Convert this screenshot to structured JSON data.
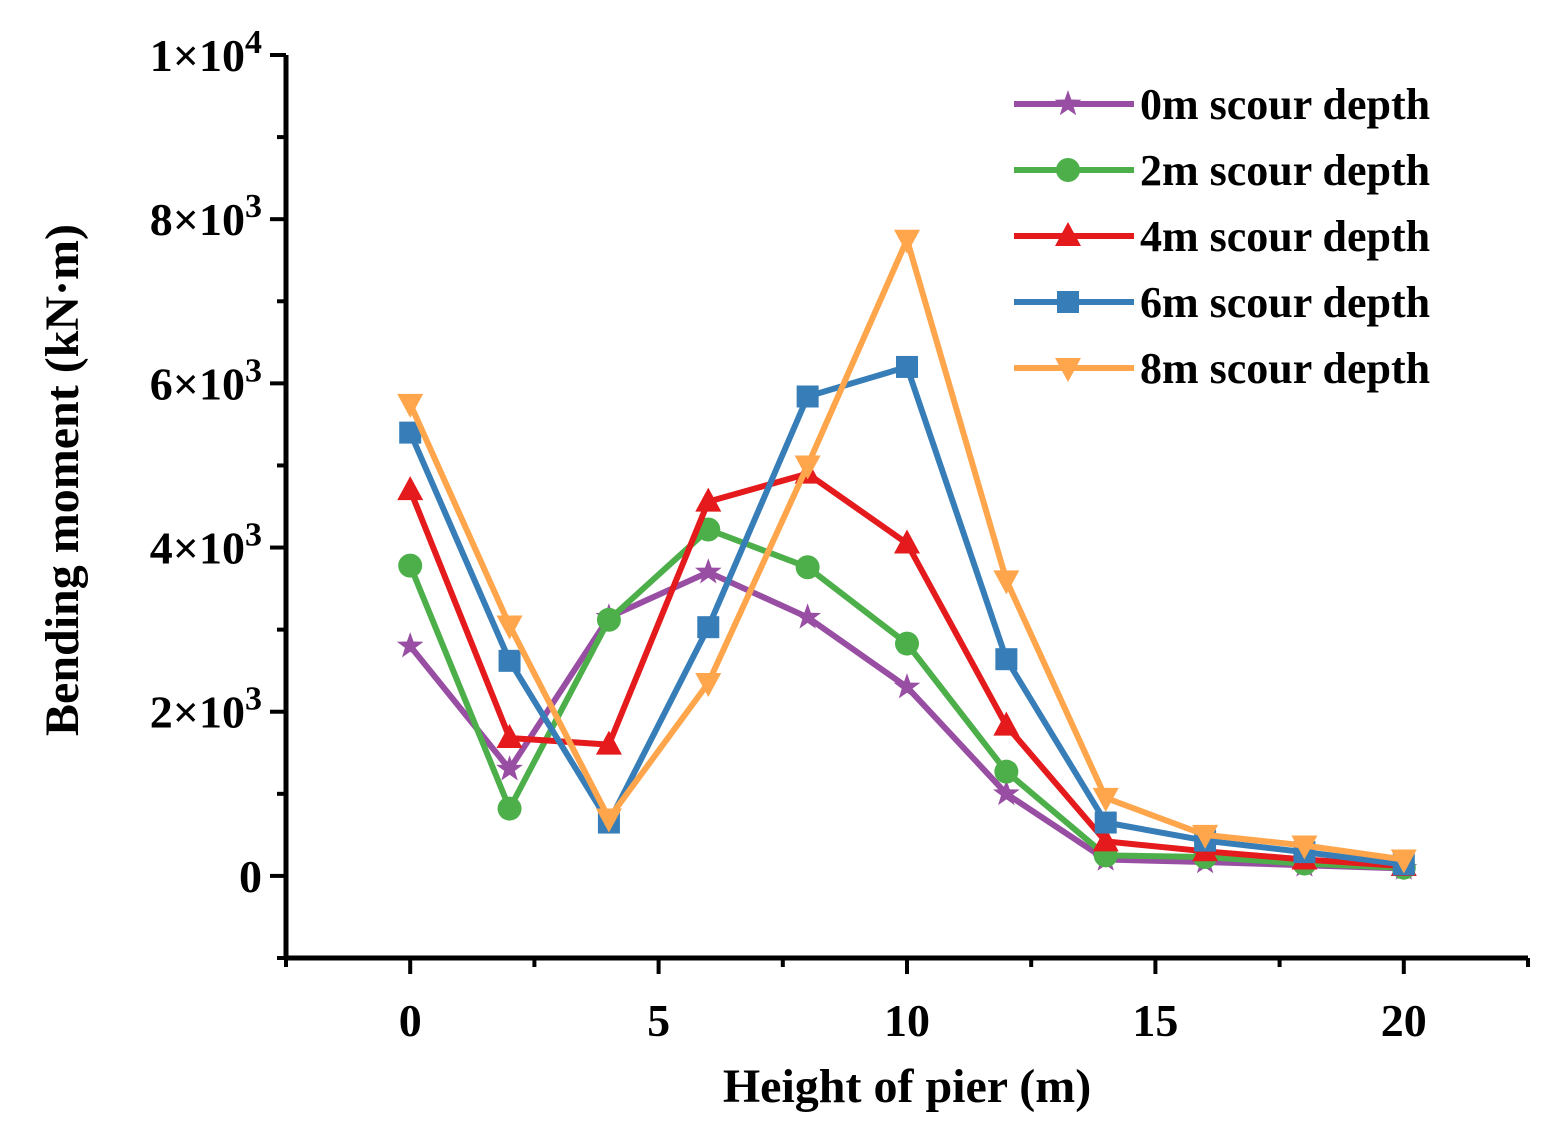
{
  "chart_data": {
    "type": "line",
    "title": "",
    "xlabel": "Height of pier (m)",
    "ylabel": "Bending moment (kN·m)",
    "xlim": [
      -2.5,
      22.5
    ],
    "ylim": [
      -1000,
      10000
    ],
    "x_ticks": [
      0,
      5,
      10,
      15,
      20
    ],
    "x_tick_labels": [
      "0",
      "5",
      "10",
      "15",
      "20"
    ],
    "y_ticks": [
      0,
      2000,
      4000,
      6000,
      8000,
      10000
    ],
    "y_tick_labels": [
      {
        "base": "0",
        "exp": ""
      },
      {
        "base": "2×10",
        "exp": "3"
      },
      {
        "base": "4×10",
        "exp": "3"
      },
      {
        "base": "6×10",
        "exp": "3"
      },
      {
        "base": "8×10",
        "exp": "3"
      },
      {
        "base": "1×10",
        "exp": "4"
      }
    ],
    "grid": false,
    "legend_position": "top-right",
    "x": [
      0,
      2,
      4,
      6,
      8,
      10,
      12,
      14,
      16,
      18,
      20
    ],
    "series": [
      {
        "name": "0m scour depth",
        "color": "#984ea3",
        "marker": "star",
        "values": [
          2800,
          1300,
          3150,
          3700,
          3150,
          2300,
          1000,
          200,
          170,
          130,
          90
        ]
      },
      {
        "name": "2m scour depth",
        "color": "#4daf4a",
        "marker": "circle",
        "values": [
          3780,
          820,
          3120,
          4220,
          3760,
          2830,
          1270,
          250,
          230,
          150,
          100
        ]
      },
      {
        "name": "4m scour depth",
        "color": "#e41a1c",
        "marker": "triangle-up",
        "values": [
          4700,
          1680,
          1600,
          4560,
          4900,
          4050,
          1830,
          420,
          300,
          200,
          120
        ]
      },
      {
        "name": "6m scour depth",
        "color": "#377eb8",
        "marker": "square",
        "values": [
          5400,
          2620,
          650,
          3030,
          5840,
          6200,
          2640,
          650,
          430,
          290,
          140
        ]
      },
      {
        "name": "8m scour depth",
        "color": "#ffa64d",
        "marker": "triangle-down",
        "values": [
          5750,
          3050,
          700,
          2350,
          5000,
          7750,
          3600,
          950,
          500,
          370,
          200
        ]
      }
    ]
  }
}
